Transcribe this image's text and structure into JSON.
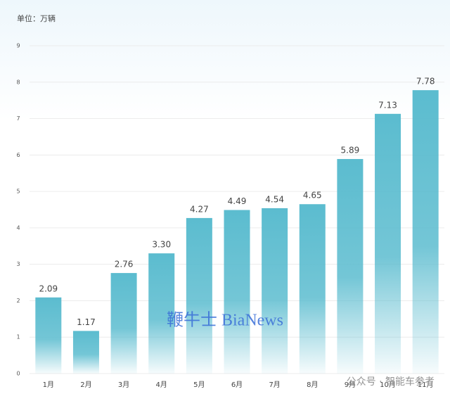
{
  "chart_data": {
    "type": "bar",
    "unit_label": "单位：万辆",
    "categories": [
      "1月",
      "2月",
      "3月",
      "4月",
      "5月",
      "6月",
      "7月",
      "8月",
      "9月",
      "10月",
      "11月"
    ],
    "values": [
      2.09,
      1.17,
      2.76,
      3.3,
      4.27,
      4.49,
      4.54,
      4.65,
      5.89,
      7.13,
      7.78
    ],
    "value_labels": [
      "2.09",
      "1.17",
      "2.76",
      "3.30",
      "4.27",
      "4.49",
      "4.54",
      "4.65",
      "5.89",
      "7.13",
      "7.78"
    ],
    "color": "#5bbccf",
    "ylim": [
      0,
      9
    ],
    "yticks": [
      0,
      1,
      2,
      3,
      4,
      5,
      6,
      7,
      8,
      9
    ],
    "grid": true,
    "annotations": [
      "鞭牛士 BiaNews",
      "公众号 · 智能车参考"
    ]
  }
}
